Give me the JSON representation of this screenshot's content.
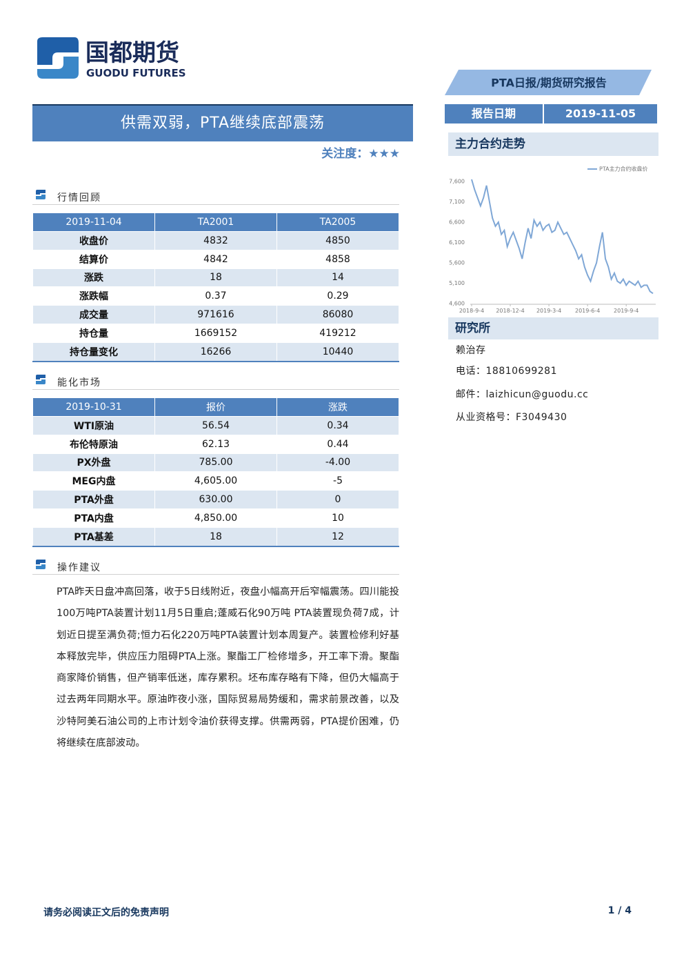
{
  "header": {
    "logo_cn": "国都期货",
    "logo_en": "GUODU FUTURES",
    "report_type": "PTA日报/期货研究报告",
    "date_label": "报告日期",
    "date": "2019-11-05"
  },
  "title": "供需双弱，PTA继续底部震荡",
  "attention": "关注度：★★★",
  "sections": [
    {
      "heading": "行情回顾",
      "table": {
        "header": [
          "2019-11-04",
          "TA2001",
          "TA2005"
        ],
        "rows": [
          [
            "收盘价",
            "4832",
            "4850"
          ],
          [
            "结算价",
            "4842",
            "4858"
          ],
          [
            "涨跌",
            "18",
            "14"
          ],
          [
            "涨跌幅",
            "0.37",
            "0.29"
          ],
          [
            "成交量",
            "971616",
            "86080"
          ],
          [
            "持仓量",
            "1669152",
            "419212"
          ],
          [
            "持仓量变化",
            "16266",
            "10440"
          ]
        ]
      }
    },
    {
      "heading": "能化市场",
      "table": {
        "header": [
          "2019-10-31",
          "报价",
          "涨跌"
        ],
        "rows": [
          [
            "WTI原油",
            "56.54",
            "0.34"
          ],
          [
            "布伦特原油",
            "62.13",
            "0.44"
          ],
          [
            "PX外盘",
            "785.00",
            "-4.00"
          ],
          [
            "MEG内盘",
            "4,605.00",
            "-5"
          ],
          [
            "PTA外盘",
            "630.00",
            "0"
          ],
          [
            "PTA内盘",
            "4,850.00",
            "10"
          ],
          [
            "PTA基差",
            "18",
            "12"
          ]
        ]
      }
    },
    {
      "heading": "操作建议",
      "text": "PTA昨天日盘冲高回落，收于5日线附近，夜盘小幅高开后窄幅震荡。四川能投100万吨PTA装置计划11月5日重启;蓬威石化90万吨 PTA装置现负荷7成，计划近日提至满负荷;恒力石化220万吨PTA装置计划本周复产。装置检修利好基本释放完毕，供应压力阻碍PTA上涨。聚酯工厂检修增多，开工率下滑。聚酯商家降价销售，但产销率低迷，库存累积。坯布库存略有下降，但仍大幅高于过去两年同期水平。原油昨夜小涨，国际贸易局势缓和，需求前景改善，以及沙特阿美石油公司的上市计划令油价获得支撑。供需两弱，PTA提价困难，仍将继续在底部波动。"
    }
  ],
  "side": {
    "chart_heading": "主力合约走势",
    "research_heading": "研究所",
    "contacts": [
      "赖治存",
      "电话：18810699281",
      "邮件：laizhicun@guodu.cc",
      "从业资格号：F3049430"
    ]
  },
  "chart_data": {
    "type": "line",
    "x": [
      "2018-9-4",
      null,
      null,
      null,
      null,
      null,
      null,
      null,
      null,
      null,
      null,
      null,
      null,
      "2018-12-4",
      null,
      null,
      null,
      null,
      null,
      null,
      null,
      null,
      null,
      null,
      null,
      null,
      "2019-3-4",
      null,
      null,
      null,
      null,
      null,
      null,
      null,
      null,
      null,
      null,
      null,
      null,
      "2019-6-4",
      null,
      null,
      null,
      null,
      null,
      null,
      null,
      null,
      null,
      null,
      null,
      null,
      "2019-9-4",
      null,
      null,
      null,
      null,
      null,
      null,
      null,
      null,
      null
    ],
    "series": [
      {
        "name": "PTA主力合约收盘价",
        "color": "#7fa7d6",
        "values": [
          7650,
          7400,
          7200,
          7000,
          7200,
          7500,
          7100,
          6700,
          6500,
          6600,
          6300,
          6400,
          6000,
          6200,
          6350,
          6150,
          5950,
          5700,
          6100,
          6450,
          6200,
          6650,
          6500,
          6600,
          6400,
          6500,
          6550,
          6350,
          6400,
          6600,
          6450,
          6300,
          6350,
          6200,
          6050,
          5900,
          5700,
          5800,
          5500,
          5300,
          5150,
          5400,
          5600,
          6000,
          6350,
          5700,
          5500,
          5200,
          5350,
          5150,
          5100,
          5200,
          5050,
          5150,
          5100,
          5050,
          5150,
          5000,
          5050,
          5050,
          4900,
          4850
        ]
      }
    ],
    "ylim": [
      4600,
      7700
    ],
    "yticks": [
      {
        "value": 4600,
        "label": "4,600"
      },
      {
        "value": 5100,
        "label": "5,100"
      },
      {
        "value": 5600,
        "label": "5,600"
      },
      {
        "value": 6100,
        "label": "6,100"
      },
      {
        "value": 6600,
        "label": "6,600"
      },
      {
        "value": 7100,
        "label": "7,100"
      },
      {
        "value": 7600,
        "label": "7,600"
      }
    ],
    "grid": false,
    "legend": "top-right"
  },
  "footer": {
    "disclaimer": "请务必阅读正文后的免责声明",
    "page": "1 / 4"
  }
}
